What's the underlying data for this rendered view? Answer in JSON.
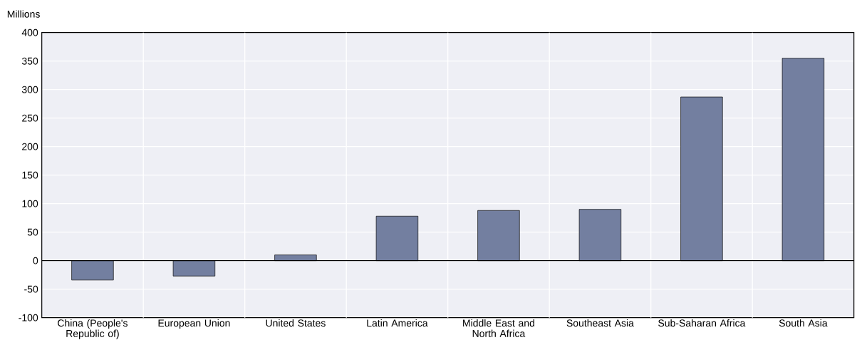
{
  "chart_data": {
    "type": "bar",
    "ylabel": "Millions",
    "categories": [
      "China (People's Republic of)",
      "European Union",
      "United States",
      "Latin America",
      "Middle East and North Africa",
      "Southeast Asia",
      "Sub-Saharan Africa",
      "South Asia"
    ],
    "values": [
      -34,
      -27,
      10,
      78,
      88,
      90,
      287,
      355
    ],
    "color": "#737fa0",
    "ylim": [
      -100,
      400
    ],
    "yticks": [
      -100,
      -50,
      0,
      50,
      100,
      150,
      200,
      250,
      300,
      350,
      400
    ],
    "grid": true
  }
}
